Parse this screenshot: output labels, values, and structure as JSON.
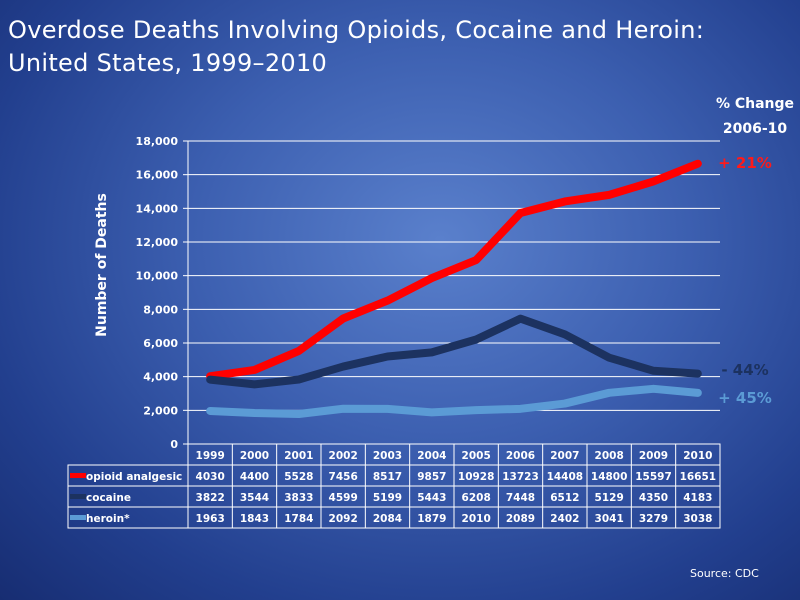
{
  "title_line1": "Overdose Deaths Involving Opioids, Cocaine and Heroin:",
  "title_line2": "United States, 1999–2010",
  "pct_change_header_line1": "% Change",
  "pct_change_header_line2": "2006-10",
  "source": "Source: CDC",
  "chart_data": {
    "type": "line",
    "ylabel": "Number of Deaths",
    "ylim": [
      0,
      18000
    ],
    "yticks": [
      "0",
      "2,000",
      "4,000",
      "6,000",
      "8,000",
      "10,000",
      "12,000",
      "14,000",
      "16,000",
      "18,000"
    ],
    "categories": [
      "1999",
      "2000",
      "2001",
      "2002",
      "2003",
      "2004",
      "2005",
      "2006",
      "2007",
      "2008",
      "2009",
      "2010"
    ],
    "grid": true,
    "legend": "data-table",
    "series": [
      {
        "name": "opioid analgesic",
        "color": "#ff0000",
        "pct_change": "+ 21%",
        "values": [
          4030,
          4400,
          5528,
          7456,
          8517,
          9857,
          10928,
          13723,
          14408,
          14800,
          15597,
          16651
        ]
      },
      {
        "name": "cocaine",
        "color": "#1c3260",
        "pct_change": "- 44%",
        "values": [
          3822,
          3544,
          3833,
          4599,
          5199,
          5443,
          6208,
          7448,
          6512,
          5129,
          4350,
          4183
        ]
      },
      {
        "name": "heroin*",
        "color": "#5b9bd5",
        "pct_change": "+ 45%",
        "values": [
          1963,
          1843,
          1784,
          2092,
          2084,
          1879,
          2010,
          2089,
          2402,
          3041,
          3279,
          3038
        ]
      }
    ]
  }
}
